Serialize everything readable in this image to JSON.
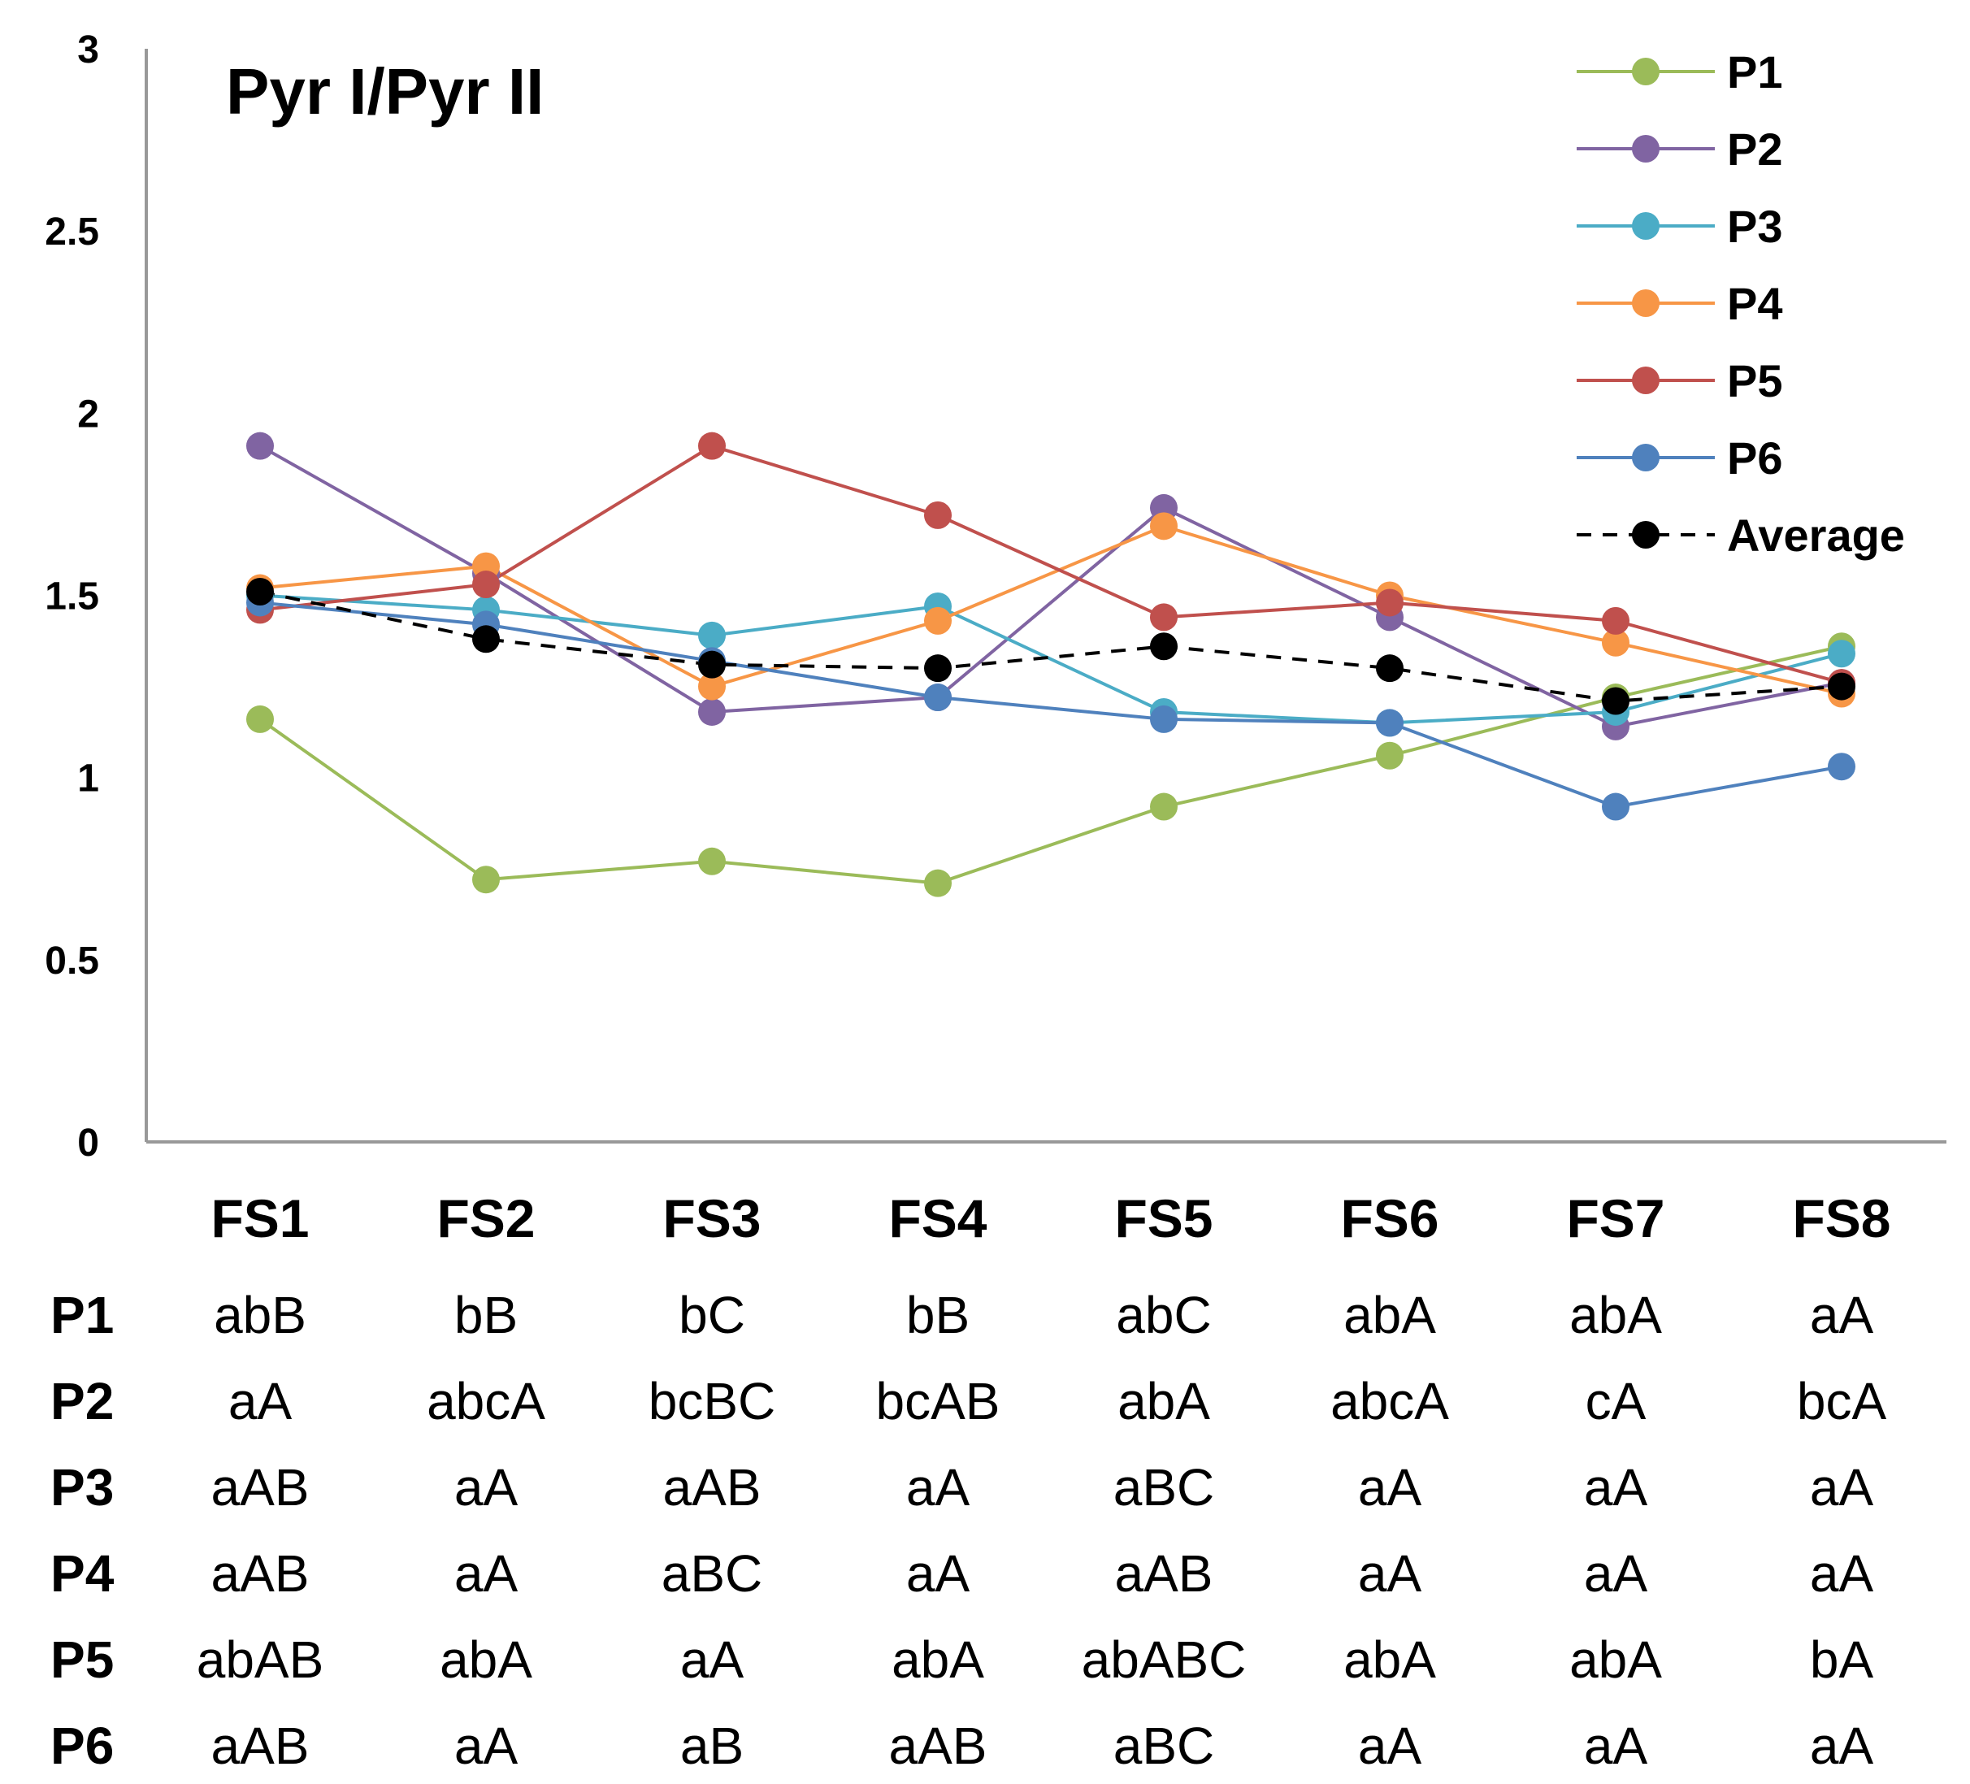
{
  "chart_data": {
    "type": "line",
    "title": "Pyr I/Pyr II",
    "xlabel": "",
    "ylabel": "",
    "ylim": [
      0,
      3
    ],
    "yticks": [
      "0",
      "0.5",
      "1",
      "1.5",
      "2",
      "2.5",
      "3"
    ],
    "categories": [
      "FS1",
      "FS2",
      "FS3",
      "FS4",
      "FS5",
      "FS6",
      "FS7",
      "FS8"
    ],
    "legend_position": "top-right",
    "series": [
      {
        "name": "P1",
        "color": "#9bbb59",
        "dashed": false,
        "values": [
          1.16,
          0.72,
          0.77,
          0.71,
          0.92,
          1.06,
          1.22,
          1.36
        ]
      },
      {
        "name": "P2",
        "color": "#8064a2",
        "dashed": false,
        "values": [
          1.91,
          1.56,
          1.18,
          1.22,
          1.74,
          1.44,
          1.14,
          1.26
        ]
      },
      {
        "name": "P3",
        "color": "#4bacc6",
        "dashed": false,
        "values": [
          1.5,
          1.46,
          1.39,
          1.47,
          1.18,
          1.15,
          1.18,
          1.34
        ]
      },
      {
        "name": "P4",
        "color": "#f79646",
        "dashed": false,
        "values": [
          1.52,
          1.58,
          1.25,
          1.43,
          1.69,
          1.5,
          1.37,
          1.23
        ]
      },
      {
        "name": "P5",
        "color": "#c0504d",
        "dashed": false,
        "values": [
          1.46,
          1.53,
          1.91,
          1.72,
          1.44,
          1.48,
          1.43,
          1.26
        ]
      },
      {
        "name": "P6",
        "color": "#4f81bd",
        "dashed": false,
        "values": [
          1.48,
          1.42,
          1.32,
          1.22,
          1.16,
          1.15,
          0.92,
          1.03
        ]
      },
      {
        "name": "Average",
        "color": "#000000",
        "dashed": true,
        "values": [
          1.51,
          1.38,
          1.31,
          1.3,
          1.36,
          1.3,
          1.21,
          1.25
        ]
      }
    ]
  },
  "table": {
    "rows": [
      {
        "label": "P1",
        "cells": [
          "abB",
          "bB",
          "bC",
          "bB",
          "abC",
          "abA",
          "abA",
          "aA"
        ]
      },
      {
        "label": "P2",
        "cells": [
          "aA",
          "abcA",
          "bcBC",
          "bcAB",
          "abA",
          "abcA",
          "cA",
          "bcA"
        ]
      },
      {
        "label": "P3",
        "cells": [
          "aAB",
          "aA",
          "aAB",
          "aA",
          "aBC",
          "aA",
          "aA",
          "aA"
        ]
      },
      {
        "label": "P4",
        "cells": [
          "aAB",
          "aA",
          "aBC",
          "aA",
          "aAB",
          "aA",
          "aA",
          "aA"
        ]
      },
      {
        "label": "P5",
        "cells": [
          "abAB",
          "abA",
          "aA",
          "abA",
          "abABC",
          "abA",
          "abA",
          "bA"
        ]
      },
      {
        "label": "P6",
        "cells": [
          "aAB",
          "aA",
          "aB",
          "aAB",
          "aBC",
          "aA",
          "aA",
          "aA"
        ]
      }
    ]
  }
}
